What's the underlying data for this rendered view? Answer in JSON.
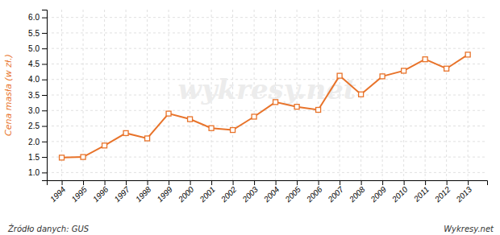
{
  "chart_data": {
    "type": "line",
    "ylabel": "Cena masła (w zł.)",
    "annotations": [
      "wykresy.net",
      "Źródło danych:  GUS",
      "Wykresy.net"
    ],
    "x": [
      1994,
      1995,
      1996,
      1997,
      1998,
      1999,
      2000,
      2001,
      2002,
      2003,
      2004,
      2005,
      2006,
      2007,
      2008,
      2009,
      2010,
      2011,
      2012,
      2013
    ],
    "values": [
      1.48,
      1.5,
      1.87,
      2.27,
      2.1,
      2.9,
      2.72,
      2.43,
      2.37,
      2.8,
      3.27,
      3.12,
      3.02,
      4.12,
      3.52,
      4.1,
      4.28,
      4.65,
      4.35,
      4.8
    ],
    "color": "#E8732A",
    "marker": "square",
    "xlim": [
      1993.3,
      2013.9
    ],
    "xticks": [
      1994,
      1995,
      1996,
      1997,
      1998,
      1999,
      2000,
      2001,
      2002,
      2003,
      2004,
      2005,
      2006,
      2007,
      2008,
      2009,
      2010,
      2011,
      2012,
      2013
    ],
    "ylim": [
      0.75,
      6.25
    ],
    "yticks": [
      {
        "value": 1,
        "label": "1.0"
      },
      1.5,
      {
        "value": 2,
        "label": "2.0"
      },
      2.5,
      {
        "value": 3,
        "label": "3.0"
      },
      3.5,
      {
        "value": 4,
        "label": "4.0"
      },
      4.5,
      {
        "value": 5,
        "label": "5.0"
      },
      5.5,
      {
        "value": 6,
        "label": "6.0"
      }
    ],
    "grid": true
  }
}
